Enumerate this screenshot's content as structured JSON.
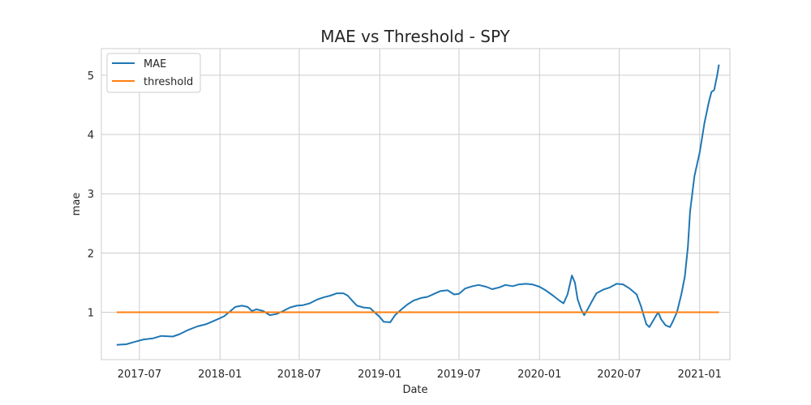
{
  "chart_data": {
    "type": "line",
    "title": "MAE vs Threshold - SPY",
    "xlabel": "Date",
    "ylabel": "mae",
    "xlim": [
      "2017-04-05",
      "2021-03-11"
    ],
    "ylim": [
      0.2,
      5.45
    ],
    "x_ticks": [
      {
        "value": "2017-07-01",
        "label": "2017-07"
      },
      {
        "value": "2018-01-01",
        "label": "2018-01"
      },
      {
        "value": "2018-07-01",
        "label": "2018-07"
      },
      {
        "value": "2019-01-01",
        "label": "2019-01"
      },
      {
        "value": "2019-07-01",
        "label": "2019-07"
      },
      {
        "value": "2020-01-01",
        "label": "2020-01"
      },
      {
        "value": "2020-07-01",
        "label": "2020-07"
      },
      {
        "value": "2021-01-01",
        "label": "2021-01"
      }
    ],
    "y_ticks": [
      {
        "value": 1,
        "label": "1"
      },
      {
        "value": 2,
        "label": "2"
      },
      {
        "value": 3,
        "label": "3"
      },
      {
        "value": 4,
        "label": "4"
      },
      {
        "value": 5,
        "label": "5"
      }
    ],
    "grid": true,
    "legend": "top-left",
    "series": [
      {
        "name": "MAE",
        "color": "#1f77b4",
        "points": [
          [
            "2017-05-10",
            0.45
          ],
          [
            "2017-06-01",
            0.46
          ],
          [
            "2017-06-20",
            0.5
          ],
          [
            "2017-07-10",
            0.54
          ],
          [
            "2017-08-01",
            0.56
          ],
          [
            "2017-08-20",
            0.6
          ],
          [
            "2017-09-15",
            0.59
          ],
          [
            "2017-10-01",
            0.63
          ],
          [
            "2017-10-20",
            0.7
          ],
          [
            "2017-11-10",
            0.76
          ],
          [
            "2017-12-01",
            0.8
          ],
          [
            "2017-12-20",
            0.86
          ],
          [
            "2018-01-10",
            0.93
          ],
          [
            "2018-01-25",
            1.02
          ],
          [
            "2018-02-05",
            1.09
          ],
          [
            "2018-02-20",
            1.11
          ],
          [
            "2018-03-05",
            1.09
          ],
          [
            "2018-03-15",
            1.02
          ],
          [
            "2018-03-25",
            1.05
          ],
          [
            "2018-04-10",
            1.02
          ],
          [
            "2018-04-25",
            0.95
          ],
          [
            "2018-05-10",
            0.97
          ],
          [
            "2018-05-25",
            1.02
          ],
          [
            "2018-06-10",
            1.08
          ],
          [
            "2018-06-25",
            1.11
          ],
          [
            "2018-07-10",
            1.12
          ],
          [
            "2018-07-25",
            1.15
          ],
          [
            "2018-08-10",
            1.21
          ],
          [
            "2018-08-25",
            1.25
          ],
          [
            "2018-09-10",
            1.28
          ],
          [
            "2018-09-25",
            1.32
          ],
          [
            "2018-10-10",
            1.32
          ],
          [
            "2018-10-20",
            1.28
          ],
          [
            "2018-11-01",
            1.18
          ],
          [
            "2018-11-10",
            1.11
          ],
          [
            "2018-11-25",
            1.08
          ],
          [
            "2018-12-10",
            1.07
          ],
          [
            "2018-12-20",
            1.0
          ],
          [
            "2019-01-01",
            0.92
          ],
          [
            "2019-01-10",
            0.84
          ],
          [
            "2019-01-25",
            0.83
          ],
          [
            "2019-02-05",
            0.95
          ],
          [
            "2019-02-20",
            1.05
          ],
          [
            "2019-03-05",
            1.13
          ],
          [
            "2019-03-20",
            1.2
          ],
          [
            "2019-04-05",
            1.24
          ],
          [
            "2019-04-20",
            1.26
          ],
          [
            "2019-05-05",
            1.31
          ],
          [
            "2019-05-20",
            1.36
          ],
          [
            "2019-06-05",
            1.37
          ],
          [
            "2019-06-20",
            1.3
          ],
          [
            "2019-07-01",
            1.31
          ],
          [
            "2019-07-15",
            1.4
          ],
          [
            "2019-08-01",
            1.44
          ],
          [
            "2019-08-15",
            1.46
          ],
          [
            "2019-09-01",
            1.43
          ],
          [
            "2019-09-15",
            1.39
          ],
          [
            "2019-10-01",
            1.42
          ],
          [
            "2019-10-15",
            1.46
          ],
          [
            "2019-11-01",
            1.44
          ],
          [
            "2019-11-15",
            1.47
          ],
          [
            "2019-12-01",
            1.48
          ],
          [
            "2019-12-15",
            1.47
          ],
          [
            "2020-01-01",
            1.43
          ],
          [
            "2020-01-15",
            1.37
          ],
          [
            "2020-02-01",
            1.28
          ],
          [
            "2020-02-15",
            1.2
          ],
          [
            "2020-02-25",
            1.15
          ],
          [
            "2020-03-05",
            1.3
          ],
          [
            "2020-03-15",
            1.62
          ],
          [
            "2020-03-22",
            1.5
          ],
          [
            "2020-03-28",
            1.22
          ],
          [
            "2020-04-05",
            1.05
          ],
          [
            "2020-04-12",
            0.95
          ],
          [
            "2020-04-20",
            1.05
          ],
          [
            "2020-05-01",
            1.2
          ],
          [
            "2020-05-10",
            1.32
          ],
          [
            "2020-05-25",
            1.38
          ],
          [
            "2020-06-10",
            1.42
          ],
          [
            "2020-06-25",
            1.48
          ],
          [
            "2020-07-10",
            1.47
          ],
          [
            "2020-07-25",
            1.4
          ],
          [
            "2020-08-10",
            1.3
          ],
          [
            "2020-08-20",
            1.1
          ],
          [
            "2020-09-01",
            0.8
          ],
          [
            "2020-09-08",
            0.75
          ],
          [
            "2020-09-20",
            0.9
          ],
          [
            "2020-09-28",
            1.0
          ],
          [
            "2020-10-05",
            0.88
          ],
          [
            "2020-10-15",
            0.78
          ],
          [
            "2020-10-25",
            0.75
          ],
          [
            "2020-11-01",
            0.85
          ],
          [
            "2020-11-10",
            1.0
          ],
          [
            "2020-11-20",
            1.3
          ],
          [
            "2020-11-28",
            1.6
          ],
          [
            "2020-12-05",
            2.1
          ],
          [
            "2020-12-10",
            2.7
          ],
          [
            "2020-12-20",
            3.3
          ],
          [
            "2021-01-01",
            3.7
          ],
          [
            "2021-01-12",
            4.2
          ],
          [
            "2021-01-22",
            4.55
          ],
          [
            "2021-01-28",
            4.72
          ],
          [
            "2021-02-03",
            4.75
          ],
          [
            "2021-02-10",
            5.0
          ],
          [
            "2021-02-14",
            5.18
          ]
        ]
      },
      {
        "name": "threshold",
        "color": "#ff7f0e",
        "points": [
          [
            "2017-05-10",
            1.0
          ],
          [
            "2021-02-14",
            1.0
          ]
        ]
      }
    ]
  }
}
